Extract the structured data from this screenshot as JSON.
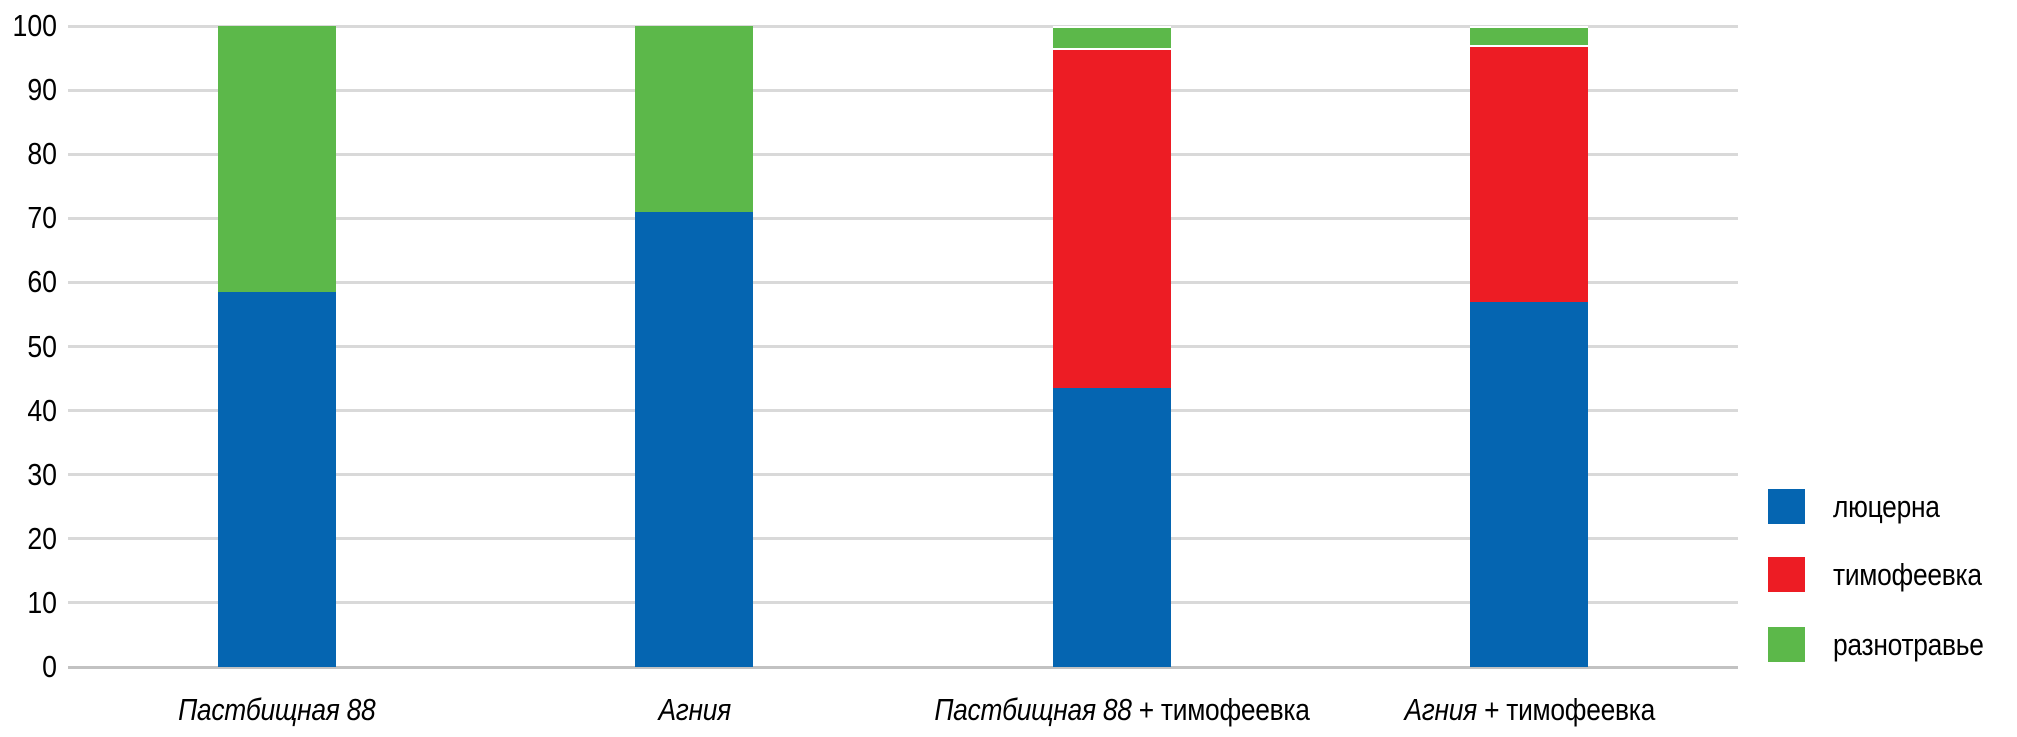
{
  "chart_data": {
    "type": "bar",
    "stacked": true,
    "title": "",
    "xlabel": "",
    "ylabel": "",
    "ylim": [
      0,
      100
    ],
    "yticks": [
      0,
      10,
      20,
      30,
      40,
      50,
      60,
      70,
      80,
      90,
      100
    ],
    "grid": true,
    "legend_position": "right",
    "categories": [
      {
        "name_italic": "Пастбищная 88",
        "name_regular": ""
      },
      {
        "name_italic": "Агния",
        "name_regular": ""
      },
      {
        "name_italic": "Пастбищная 88",
        "name_regular": " + тимофеевка"
      },
      {
        "name_italic": "Агния",
        "name_regular": " + тимофеевка"
      }
    ],
    "series": [
      {
        "key": "lucerne",
        "name": "люцерна",
        "color": "#0565b1",
        "values": [
          58.5,
          71,
          43.5,
          57
        ]
      },
      {
        "key": "timothy",
        "name": "тимофеевка",
        "color": "#ed1c24",
        "values": [
          0,
          0,
          53,
          40
        ]
      },
      {
        "key": "forbs",
        "name": "разнотравье",
        "color": "#5cb84a",
        "values": [
          41.5,
          29,
          3.5,
          3
        ]
      }
    ],
    "colors": {
      "gridline": "#d9d9d9",
      "baseline": "#c2c2c2",
      "text": "#000000"
    }
  }
}
